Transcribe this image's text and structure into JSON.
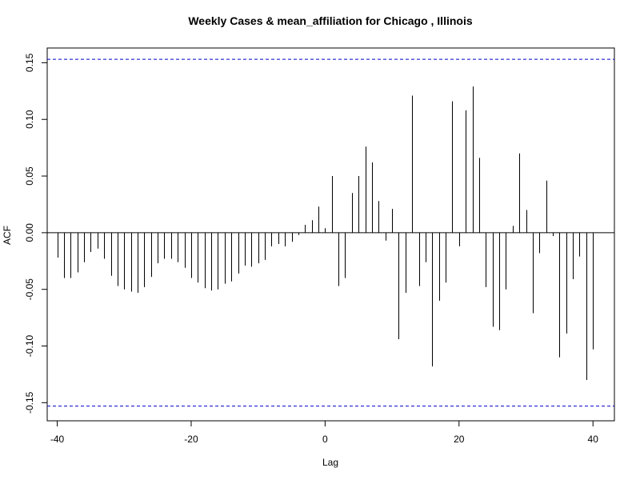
{
  "chart_data": {
    "type": "bar",
    "title": "Weekly Cases & mean_affiliation for Chicago , Illinois",
    "xlabel": "Lag",
    "ylabel": "ACF",
    "xlim": [
      -41.5,
      43.2
    ],
    "ylim": [
      -0.166,
      0.163
    ],
    "x_ticks": [
      -40,
      -20,
      0,
      20,
      40
    ],
    "y_ticks": [
      -0.15,
      -0.1,
      -0.05,
      0.0,
      0.05,
      0.1,
      0.15
    ],
    "x_tick_labels": [
      "-40",
      "-20",
      "0",
      "20",
      "40"
    ],
    "y_tick_labels": [
      "-0.15",
      "-0.10",
      "-0.05",
      "0.00",
      "0.05",
      "0.10",
      "0.15"
    ],
    "confidence_bounds": [
      0.153,
      -0.153
    ],
    "confidence_color": "#0000cc",
    "lags": [
      -40,
      -39,
      -38,
      -37,
      -36,
      -35,
      -34,
      -33,
      -32,
      -31,
      -30,
      -29,
      -28,
      -27,
      -26,
      -25,
      -24,
      -23,
      -22,
      -21,
      -20,
      -19,
      -18,
      -17,
      -16,
      -15,
      -14,
      -13,
      -12,
      -11,
      -10,
      -9,
      -8,
      -7,
      -6,
      -5,
      -4,
      -3,
      -2,
      -1,
      0,
      1,
      2,
      3,
      4,
      5,
      6,
      7,
      8,
      9,
      10,
      11,
      12,
      13,
      14,
      15,
      16,
      17,
      18,
      19,
      20,
      21,
      22,
      23,
      24,
      25,
      26,
      27,
      28,
      29,
      30,
      31,
      32,
      33,
      34,
      35,
      36,
      37,
      38,
      39,
      40
    ],
    "values": [
      -0.022,
      -0.04,
      -0.04,
      -0.035,
      -0.026,
      -0.017,
      -0.014,
      -0.023,
      -0.038,
      -0.047,
      -0.05,
      -0.052,
      -0.053,
      -0.048,
      -0.039,
      -0.027,
      -0.023,
      -0.023,
      -0.026,
      -0.031,
      -0.04,
      -0.044,
      -0.049,
      -0.051,
      -0.05,
      -0.045,
      -0.043,
      -0.036,
      -0.029,
      -0.03,
      -0.027,
      -0.024,
      -0.012,
      -0.01,
      -0.012,
      -0.008,
      -0.002,
      0.007,
      0.011,
      0.023,
      0.004,
      0.05,
      -0.047,
      -0.04,
      0.035,
      0.05,
      0.076,
      0.062,
      0.028,
      -0.007,
      0.021,
      -0.094,
      -0.053,
      0.121,
      -0.047,
      -0.026,
      -0.118,
      -0.06,
      -0.044,
      0.116,
      -0.012,
      0.108,
      0.129,
      0.066,
      -0.048,
      -0.083,
      -0.086,
      -0.05,
      0.006,
      0.07,
      0.02,
      -0.071,
      -0.018,
      0.046,
      -0.003,
      -0.11,
      -0.089,
      -0.041,
      -0.021,
      -0.13,
      -0.103
    ]
  }
}
